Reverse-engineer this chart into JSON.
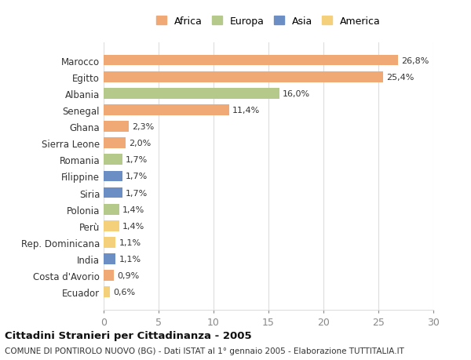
{
  "countries": [
    "Marocco",
    "Egitto",
    "Albania",
    "Senegal",
    "Ghana",
    "Sierra Leone",
    "Romania",
    "Filippine",
    "Siria",
    "Polonia",
    "Perù",
    "Rep. Dominicana",
    "India",
    "Costa d'Avorio",
    "Ecuador"
  ],
  "values": [
    26.8,
    25.4,
    16.0,
    11.4,
    2.3,
    2.0,
    1.7,
    1.7,
    1.7,
    1.4,
    1.4,
    1.1,
    1.1,
    0.9,
    0.6
  ],
  "labels": [
    "26,8%",
    "25,4%",
    "16,0%",
    "11,4%",
    "2,3%",
    "2,0%",
    "1,7%",
    "1,7%",
    "1,7%",
    "1,4%",
    "1,4%",
    "1,1%",
    "1,1%",
    "0,9%",
    "0,6%"
  ],
  "continents": [
    "Africa",
    "Africa",
    "Europa",
    "Africa",
    "Africa",
    "Africa",
    "Europa",
    "Asia",
    "Asia",
    "Europa",
    "America",
    "America",
    "Asia",
    "Africa",
    "America"
  ],
  "colors": {
    "Africa": "#F0A875",
    "Europa": "#B5C98A",
    "Asia": "#6B8FC4",
    "America": "#F5D07A"
  },
  "legend_order": [
    "Africa",
    "Europa",
    "Asia",
    "America"
  ],
  "xlim": [
    0,
    30
  ],
  "xticks": [
    0,
    5,
    10,
    15,
    20,
    25,
    30
  ],
  "title": "Cittadini Stranieri per Cittadinanza - 2005",
  "subtitle": "COMUNE DI PONTIROLO NUOVO (BG) - Dati ISTAT al 1° gennaio 2005 - Elaborazione TUTTITALIA.IT",
  "bg_color": "#FFFFFF",
  "grid_color": "#DDDDDD",
  "bar_height": 0.65
}
